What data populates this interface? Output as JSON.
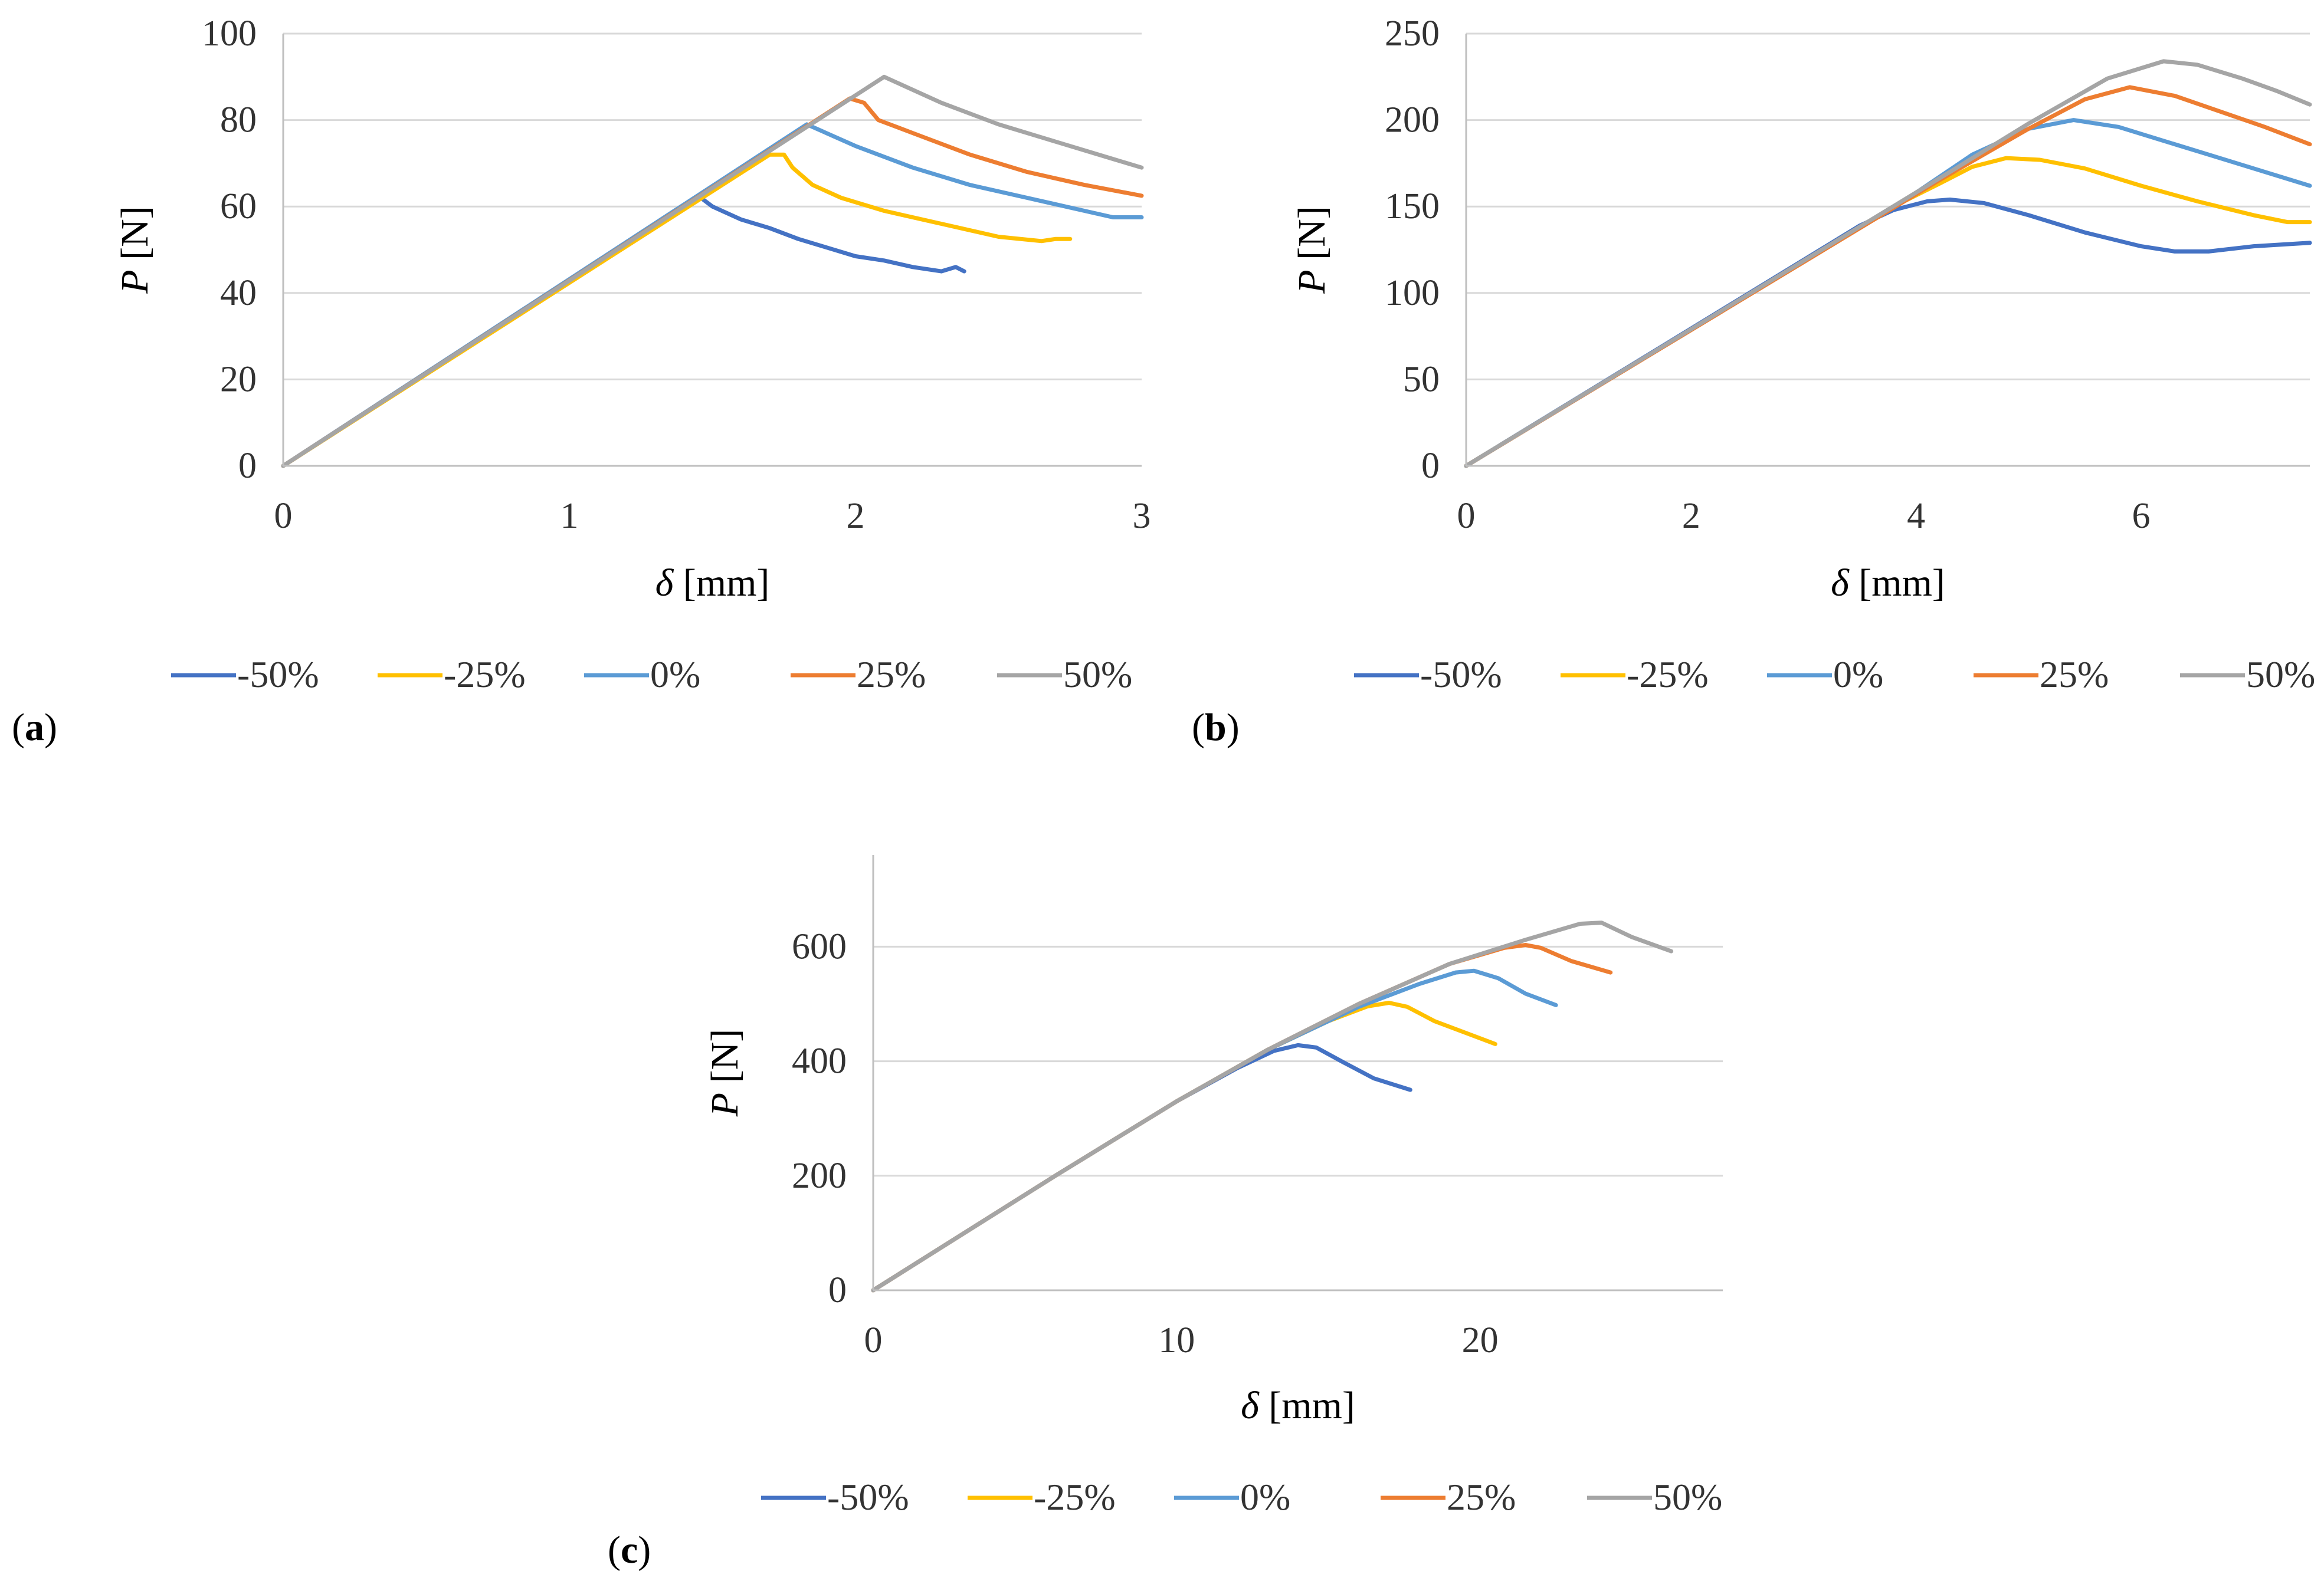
{
  "colors": {
    "-50%": "#4472C4",
    "-25%": "#FFC000",
    "0%": "#5B9BD5",
    "25%": "#ED7D31",
    "50%": "#A5A5A5",
    "gridline": "#D9D9D9",
    "axis": "#BFBFBF"
  },
  "chart_data": [
    {
      "type": "line",
      "panel_label": "(a)",
      "panel_letter": "a",
      "title": "",
      "xlabel_sym": "δ",
      "xlabel_unit": "[mm]",
      "ylabel_sym": "P",
      "ylabel_unit": "[N]",
      "xlim": [
        0,
        3
      ],
      "ylim": [
        0,
        100
      ],
      "xticks": [
        0,
        1,
        2,
        3
      ],
      "xtick_labels": [
        "0",
        "1",
        "2",
        "3"
      ],
      "yticks": [
        0,
        20,
        40,
        60,
        80,
        100
      ],
      "ytick_labels": [
        "0",
        "20",
        "40",
        "60",
        "80",
        "100"
      ],
      "legend": [
        "-50%",
        "-25%",
        "0%",
        "25%",
        "50%"
      ],
      "series": [
        {
          "name": "-50%",
          "x": [
            0,
            1.45,
            1.5,
            1.6,
            1.7,
            1.8,
            1.9,
            2.0,
            2.1,
            2.2,
            2.3,
            2.35,
            2.38
          ],
          "y": [
            0,
            62.5,
            60,
            57,
            55,
            52.5,
            50.5,
            48.5,
            47.5,
            46,
            45,
            46,
            45
          ]
        },
        {
          "name": "-25%",
          "x": [
            0,
            1.7,
            1.75,
            1.78,
            1.85,
            1.95,
            2.1,
            2.3,
            2.5,
            2.65,
            2.7,
            2.75
          ],
          "y": [
            0,
            72,
            72,
            69,
            65,
            62,
            59,
            56,
            53,
            52,
            52.5,
            52.5
          ]
        },
        {
          "name": "0%",
          "x": [
            0,
            1.83,
            2.0,
            2.2,
            2.4,
            2.6,
            2.8,
            2.9,
            3.0
          ],
          "y": [
            0,
            79,
            74,
            69,
            65,
            62,
            59,
            57.5,
            57.5
          ]
        },
        {
          "name": "25%",
          "x": [
            0,
            1.98,
            2.03,
            2.08,
            2.2,
            2.4,
            2.6,
            2.8,
            3.0
          ],
          "y": [
            0,
            85,
            84,
            80,
            77,
            72,
            68,
            65,
            62.5
          ]
        },
        {
          "name": "50%",
          "x": [
            0,
            2.1,
            2.3,
            2.5,
            2.7,
            2.9,
            3.0
          ],
          "y": [
            0,
            90,
            84,
            79,
            75,
            71,
            69
          ]
        }
      ]
    },
    {
      "type": "line",
      "panel_label": "(b)",
      "panel_letter": "b",
      "title": "",
      "xlabel_sym": "δ",
      "xlabel_unit": "[mm]",
      "ylabel_sym": "P",
      "ylabel_unit": "[N]",
      "xlim": [
        0,
        7.5
      ],
      "ylim": [
        0,
        250
      ],
      "xticks": [
        0,
        2,
        4,
        6
      ],
      "xtick_labels": [
        "0",
        "2",
        "4",
        "6"
      ],
      "yticks": [
        0,
        50,
        100,
        150,
        200,
        250
      ],
      "ytick_labels": [
        "0",
        "50",
        "100",
        "150",
        "200",
        "250"
      ],
      "legend": [
        "-50%",
        "-25%",
        "0%",
        "25%",
        "50%"
      ],
      "series": [
        {
          "name": "-50%",
          "x": [
            0,
            3.5,
            3.8,
            4.1,
            4.3,
            4.6,
            5.0,
            5.5,
            6.0,
            6.3,
            6.6,
            7.0,
            7.5
          ],
          "y": [
            0,
            139,
            148,
            153,
            154,
            152,
            145,
            135,
            127,
            124,
            124,
            127,
            129
          ]
        },
        {
          "name": "-25%",
          "x": [
            0,
            3.8,
            4.2,
            4.5,
            4.8,
            5.1,
            5.5,
            6.0,
            6.5,
            7.0,
            7.3,
            7.5
          ],
          "y": [
            0,
            150,
            163,
            173,
            178,
            177,
            172,
            162,
            153,
            145,
            141,
            141
          ]
        },
        {
          "name": "0%",
          "x": [
            0,
            4.0,
            4.5,
            5.0,
            5.4,
            5.8,
            6.2,
            6.6,
            7.0,
            7.5
          ],
          "y": [
            0,
            158,
            180,
            195,
            200,
            196,
            188,
            180,
            172,
            162
          ]
        },
        {
          "name": "25%",
          "x": [
            0,
            4.2,
            5.0,
            5.5,
            5.9,
            6.3,
            6.7,
            7.1,
            7.5
          ],
          "y": [
            0,
            165,
            195,
            212,
            219,
            214,
            205,
            196,
            186
          ]
        },
        {
          "name": "50%",
          "x": [
            0,
            4.3,
            5.0,
            5.7,
            6.2,
            6.5,
            6.9,
            7.2,
            7.5
          ],
          "y": [
            0,
            170,
            198,
            224,
            234,
            232,
            224,
            217,
            209
          ]
        }
      ]
    },
    {
      "type": "line",
      "panel_label": "(c)",
      "panel_letter": "c",
      "title": "",
      "xlabel_sym": "δ",
      "xlabel_unit": "[mm]",
      "ylabel_sym": "P",
      "ylabel_unit": "[N]",
      "xlim": [
        0,
        28
      ],
      "ylim": [
        0,
        760
      ],
      "xticks": [
        0,
        10,
        20
      ],
      "xtick_labels": [
        "0",
        "10",
        "20"
      ],
      "yticks": [
        0,
        200,
        400,
        600
      ],
      "ytick_labels": [
        "0",
        "200",
        "400",
        "600"
      ],
      "legend": [
        "-50%",
        "-25%",
        "0%",
        "25%",
        "50%"
      ],
      "series": [
        {
          "name": "-50%",
          "x": [
            0,
            6,
            10,
            12,
            13.2,
            14.0,
            14.6,
            15.5,
            16.5,
            17.7
          ],
          "y": [
            0,
            200,
            330,
            388,
            418,
            428,
            424,
            398,
            370,
            350
          ]
        },
        {
          "name": "-25%",
          "x": [
            0,
            6,
            10,
            13,
            15,
            16.3,
            17.0,
            17.6,
            18.5,
            19.5,
            20.5
          ],
          "y": [
            0,
            200,
            330,
            420,
            470,
            496,
            502,
            495,
            470,
            450,
            430
          ]
        },
        {
          "name": "0%",
          "x": [
            0,
            6,
            10,
            13,
            16,
            18,
            19.2,
            19.8,
            20.6,
            21.5,
            22.5
          ],
          "y": [
            0,
            200,
            330,
            420,
            495,
            535,
            555,
            558,
            545,
            518,
            498
          ]
        },
        {
          "name": "25%",
          "x": [
            0,
            6,
            10,
            13,
            16,
            19,
            20.8,
            21.5,
            22.0,
            23.0,
            24.3
          ],
          "y": [
            0,
            200,
            330,
            420,
            500,
            570,
            598,
            603,
            598,
            575,
            555
          ]
        },
        {
          "name": "50%",
          "x": [
            0,
            6,
            10,
            13,
            16,
            19,
            21.5,
            23.3,
            24.0,
            25.0,
            26.3
          ],
          "y": [
            0,
            200,
            330,
            420,
            500,
            570,
            612,
            640,
            642,
            617,
            592
          ]
        }
      ]
    }
  ]
}
